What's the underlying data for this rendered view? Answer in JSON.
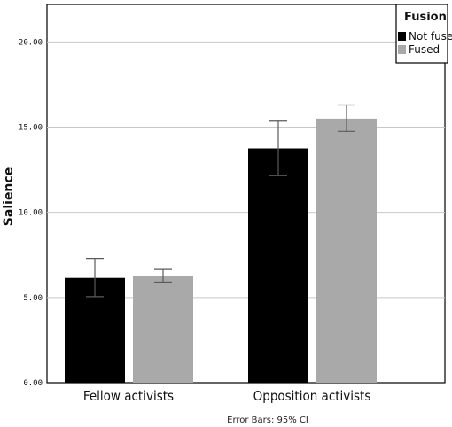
{
  "chart_data": {
    "type": "bar",
    "title": "",
    "xlabel": "",
    "ylabel": "Salience",
    "categories": [
      "Fellow activists",
      "Opposition activists"
    ],
    "ylim": [
      0,
      22.2
    ],
    "yticks": [
      "0.00",
      "5.00",
      "10.00",
      "15.00",
      "20.00"
    ],
    "grid": "horizontal",
    "legend": {
      "title": "Fusion",
      "placement": "top-right"
    },
    "series": [
      {
        "name": "Not fused",
        "color": "#000000",
        "values": [
          6.15,
          13.75
        ],
        "ci_low": [
          5.05,
          12.15
        ],
        "ci_high": [
          7.3,
          15.35
        ]
      },
      {
        "name": "Fused",
        "color": "#a9a9a9",
        "values": [
          6.25,
          15.5
        ],
        "ci_low": [
          5.9,
          14.75
        ],
        "ci_high": [
          6.65,
          16.3
        ]
      }
    ],
    "footnote": "Error Bars: 95% CI"
  }
}
